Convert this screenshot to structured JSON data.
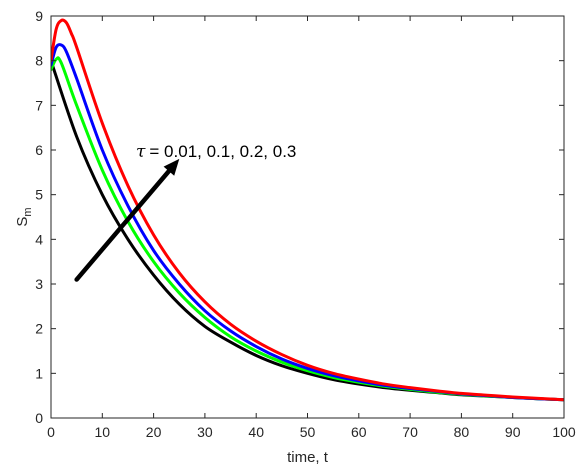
{
  "chart_data": {
    "type": "line",
    "title": "",
    "xlabel": "time, t",
    "ylabel_main": "S",
    "ylabel_sub": "m",
    "xlim": [
      0,
      100
    ],
    "ylim": [
      0,
      9
    ],
    "x_ticks": [
      "0",
      "10",
      "20",
      "30",
      "40",
      "50",
      "60",
      "70",
      "80",
      "90",
      "100"
    ],
    "y_ticks": [
      "0",
      "1",
      "2",
      "3",
      "4",
      "5",
      "6",
      "7",
      "8",
      "9"
    ],
    "grid": false,
    "annotation": {
      "symbol": "τ",
      "text": "=  0.01, 0.1, 0.2, 0.3",
      "arrow_from": [
        5,
        3.1
      ],
      "arrow_to": [
        25,
        5.8
      ]
    },
    "series": [
      {
        "color": "#000000",
        "points": [
          [
            0,
            8.0
          ],
          [
            5,
            6.3
          ],
          [
            10,
            5.0
          ],
          [
            15,
            4.0
          ],
          [
            20,
            3.2
          ],
          [
            25,
            2.55
          ],
          [
            30,
            2.05
          ],
          [
            35,
            1.7
          ],
          [
            40,
            1.4
          ],
          [
            45,
            1.17
          ],
          [
            50,
            1.0
          ],
          [
            55,
            0.86
          ],
          [
            60,
            0.76
          ],
          [
            65,
            0.68
          ],
          [
            70,
            0.62
          ],
          [
            75,
            0.57
          ],
          [
            80,
            0.52
          ],
          [
            85,
            0.49
          ],
          [
            90,
            0.46
          ],
          [
            95,
            0.43
          ],
          [
            100,
            0.41
          ]
        ]
      },
      {
        "color": "#00ff00",
        "points": [
          [
            0,
            7.8
          ],
          [
            1,
            8.03
          ],
          [
            2,
            7.95
          ],
          [
            5,
            7.0
          ],
          [
            10,
            5.55
          ],
          [
            15,
            4.4
          ],
          [
            20,
            3.5
          ],
          [
            25,
            2.8
          ],
          [
            30,
            2.25
          ],
          [
            35,
            1.82
          ],
          [
            40,
            1.5
          ],
          [
            45,
            1.25
          ],
          [
            50,
            1.06
          ],
          [
            55,
            0.91
          ],
          [
            60,
            0.8
          ],
          [
            65,
            0.71
          ],
          [
            70,
            0.64
          ],
          [
            75,
            0.58
          ],
          [
            80,
            0.53
          ],
          [
            85,
            0.49
          ],
          [
            90,
            0.46
          ],
          [
            95,
            0.43
          ],
          [
            100,
            0.41
          ]
        ]
      },
      {
        "color": "#0000ff",
        "points": [
          [
            0,
            7.9
          ],
          [
            1,
            8.3
          ],
          [
            2,
            8.35
          ],
          [
            3,
            8.2
          ],
          [
            5,
            7.6
          ],
          [
            10,
            6.0
          ],
          [
            15,
            4.75
          ],
          [
            20,
            3.75
          ],
          [
            25,
            3.0
          ],
          [
            30,
            2.4
          ],
          [
            35,
            1.95
          ],
          [
            40,
            1.6
          ],
          [
            45,
            1.32
          ],
          [
            50,
            1.11
          ],
          [
            55,
            0.95
          ],
          [
            60,
            0.83
          ],
          [
            65,
            0.73
          ],
          [
            70,
            0.66
          ],
          [
            75,
            0.6
          ],
          [
            80,
            0.54
          ],
          [
            85,
            0.5
          ],
          [
            90,
            0.46
          ],
          [
            95,
            0.43
          ],
          [
            100,
            0.41
          ]
        ]
      },
      {
        "color": "#ff0000",
        "points": [
          [
            0,
            8.0
          ],
          [
            1,
            8.7
          ],
          [
            2,
            8.9
          ],
          [
            3,
            8.85
          ],
          [
            4,
            8.6
          ],
          [
            5,
            8.3
          ],
          [
            10,
            6.6
          ],
          [
            15,
            5.2
          ],
          [
            20,
            4.1
          ],
          [
            25,
            3.25
          ],
          [
            30,
            2.6
          ],
          [
            35,
            2.1
          ],
          [
            40,
            1.72
          ],
          [
            45,
            1.42
          ],
          [
            50,
            1.18
          ],
          [
            55,
            1.0
          ],
          [
            60,
            0.87
          ],
          [
            65,
            0.76
          ],
          [
            70,
            0.68
          ],
          [
            75,
            0.61
          ],
          [
            80,
            0.55
          ],
          [
            85,
            0.51
          ],
          [
            90,
            0.47
          ],
          [
            95,
            0.44
          ],
          [
            100,
            0.41
          ]
        ]
      }
    ]
  }
}
